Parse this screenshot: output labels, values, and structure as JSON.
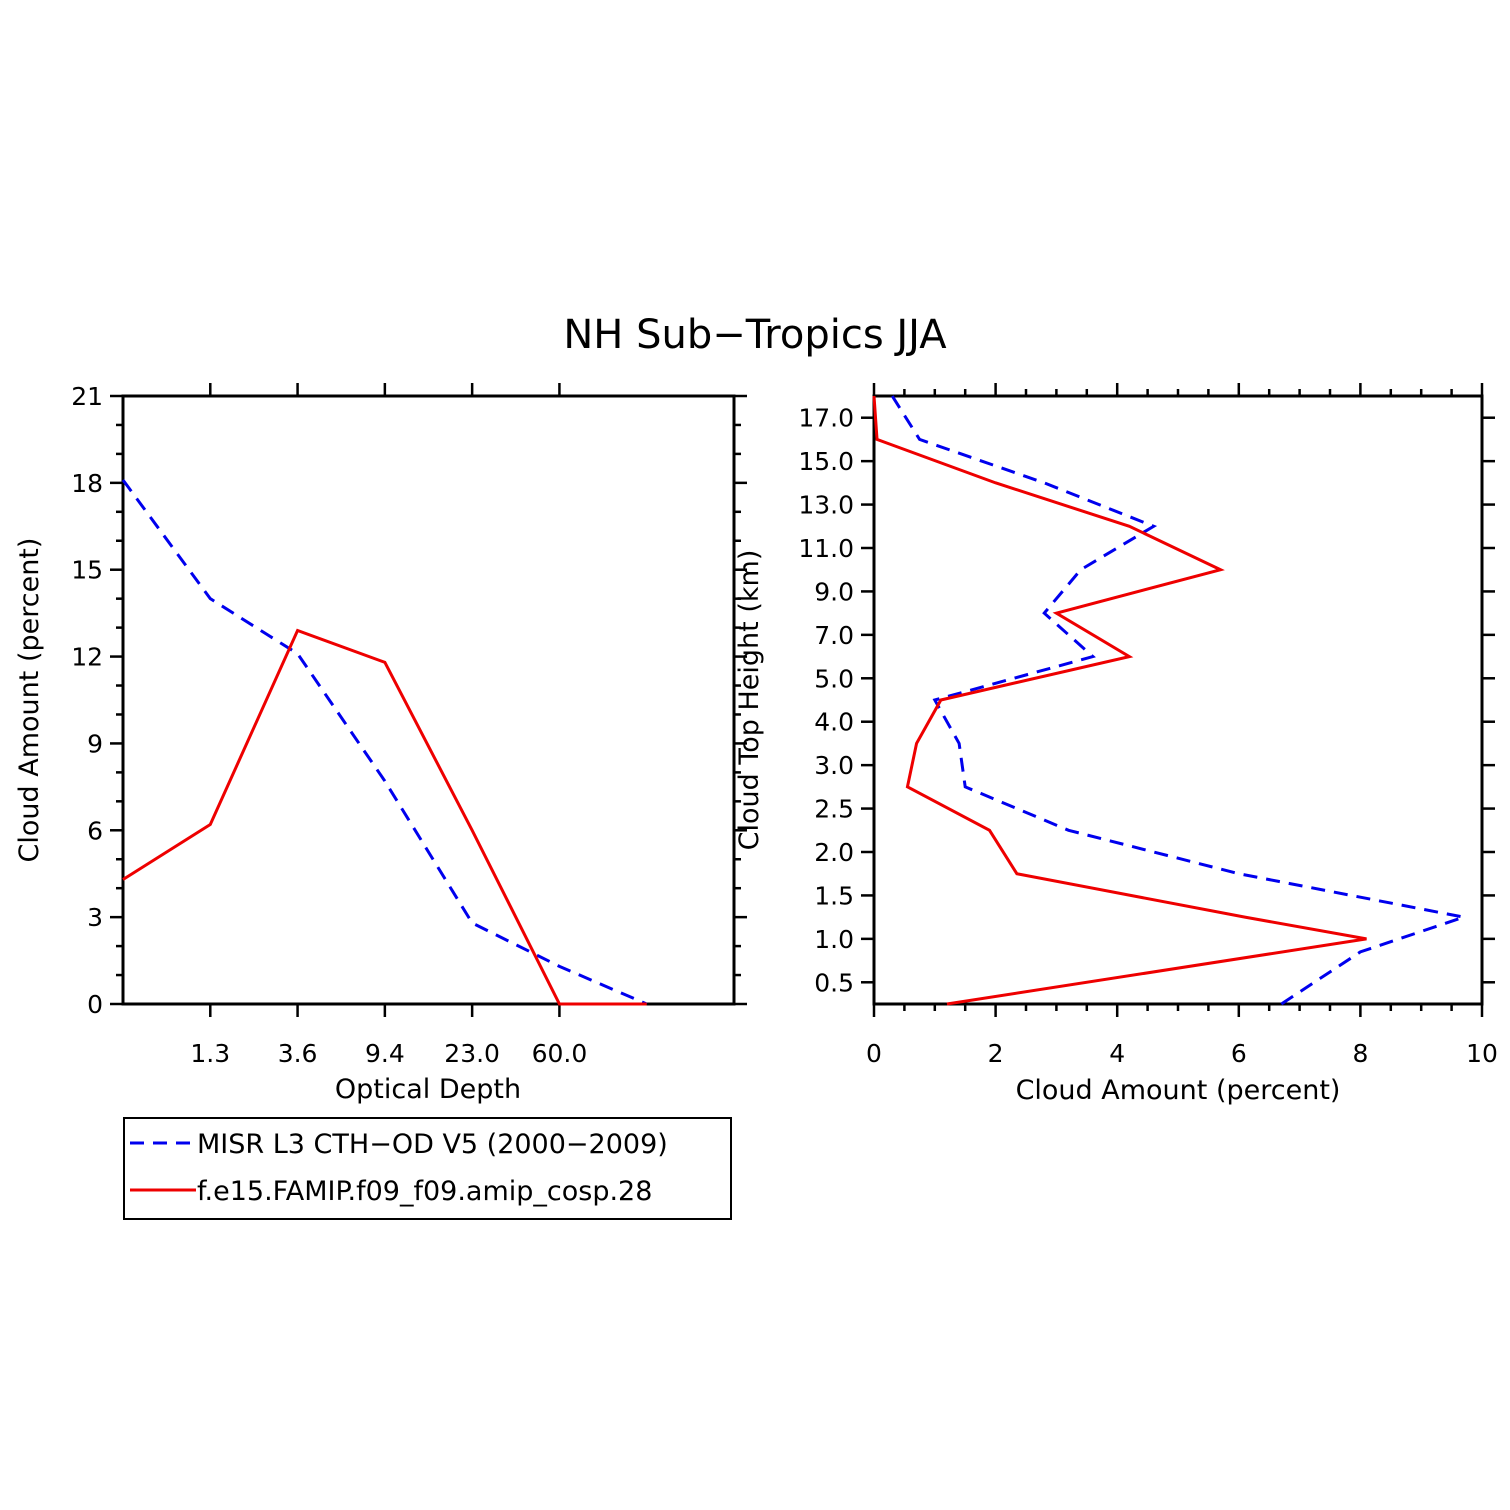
{
  "title": "NH Sub−Tropics JJA",
  "colors": {
    "obs": "#0000ee",
    "model": "#ee0000",
    "axis": "#000000"
  },
  "legend": {
    "entries": [
      {
        "label": "MISR L3 CTH−OD V5 (2000−2009)",
        "style": "dashed",
        "color": "#0000ee"
      },
      {
        "label": "f.e15.FAMIP.f09_f09.amip_cosp.28",
        "style": "solid",
        "color": "#ee0000"
      }
    ]
  },
  "chart_data": [
    {
      "type": "line",
      "xlabel": "Optical Depth",
      "ylabel": "Cloud Amount (percent)",
      "x_bins": 7,
      "xticks": [
        {
          "pos": 1,
          "label": "1.3"
        },
        {
          "pos": 2,
          "label": "3.6"
        },
        {
          "pos": 3,
          "label": "9.4"
        },
        {
          "pos": 4,
          "label": "23.0"
        },
        {
          "pos": 5,
          "label": "60.0"
        }
      ],
      "ylim": [
        0,
        21
      ],
      "yticks": [
        0,
        3,
        6,
        9,
        12,
        15,
        18,
        21
      ],
      "series": [
        {
          "name": "MISR L3 CTH−OD V5 (2000−2009)",
          "style": "dashed",
          "x": [
            0,
            1,
            2,
            3,
            4,
            5,
            6
          ],
          "values": [
            18.1,
            14.0,
            12.1,
            7.7,
            2.8,
            1.3,
            0.0
          ]
        },
        {
          "name": "f.e15.FAMIP.f09_f09.amip_cosp.28",
          "style": "solid",
          "x": [
            0,
            1,
            2,
            3,
            4,
            5,
            6
          ],
          "values": [
            4.3,
            6.2,
            12.9,
            11.8,
            6.0,
            0.0,
            0.0
          ]
        }
      ]
    },
    {
      "type": "line",
      "xlabel": "Cloud Amount (percent)",
      "ylabel": "Cloud Top Height (km)",
      "xlim": [
        0,
        10
      ],
      "xticks": [
        0,
        2,
        4,
        6,
        8,
        10
      ],
      "y_levels": 14,
      "yticks": [
        "0.5",
        "1.0",
        "1.5",
        "2.0",
        "2.5",
        "3.0",
        "4.0",
        "5.0",
        "7.0",
        "9.0",
        "11.0",
        "13.0",
        "15.0",
        "17.0"
      ],
      "series": [
        {
          "name": "MISR L3 CTH−OD V5 (2000−2009)",
          "style": "dashed",
          "x": [
            6.7,
            8.0,
            9.7,
            6.0,
            3.2,
            1.5,
            1.4,
            1.0,
            3.6,
            2.8,
            3.4,
            4.6,
            2.8,
            0.75,
            0.3
          ],
          "y": [
            0,
            1.2,
            2,
            3,
            4,
            5,
            6,
            7,
            8,
            9,
            10,
            11,
            12,
            13,
            14
          ]
        },
        {
          "name": "f.e15.FAMIP.f09_f09.amip_cosp.28",
          "style": "solid",
          "x": [
            1.2,
            8.1,
            6.1,
            2.35,
            1.9,
            0.55,
            0.7,
            1.1,
            4.2,
            3.0,
            5.7,
            4.2,
            2.0,
            0.05,
            0.0
          ],
          "y": [
            0,
            1.5,
            2,
            3,
            4,
            5,
            6,
            7,
            8,
            9,
            10,
            11,
            12,
            13,
            14
          ]
        }
      ]
    }
  ]
}
